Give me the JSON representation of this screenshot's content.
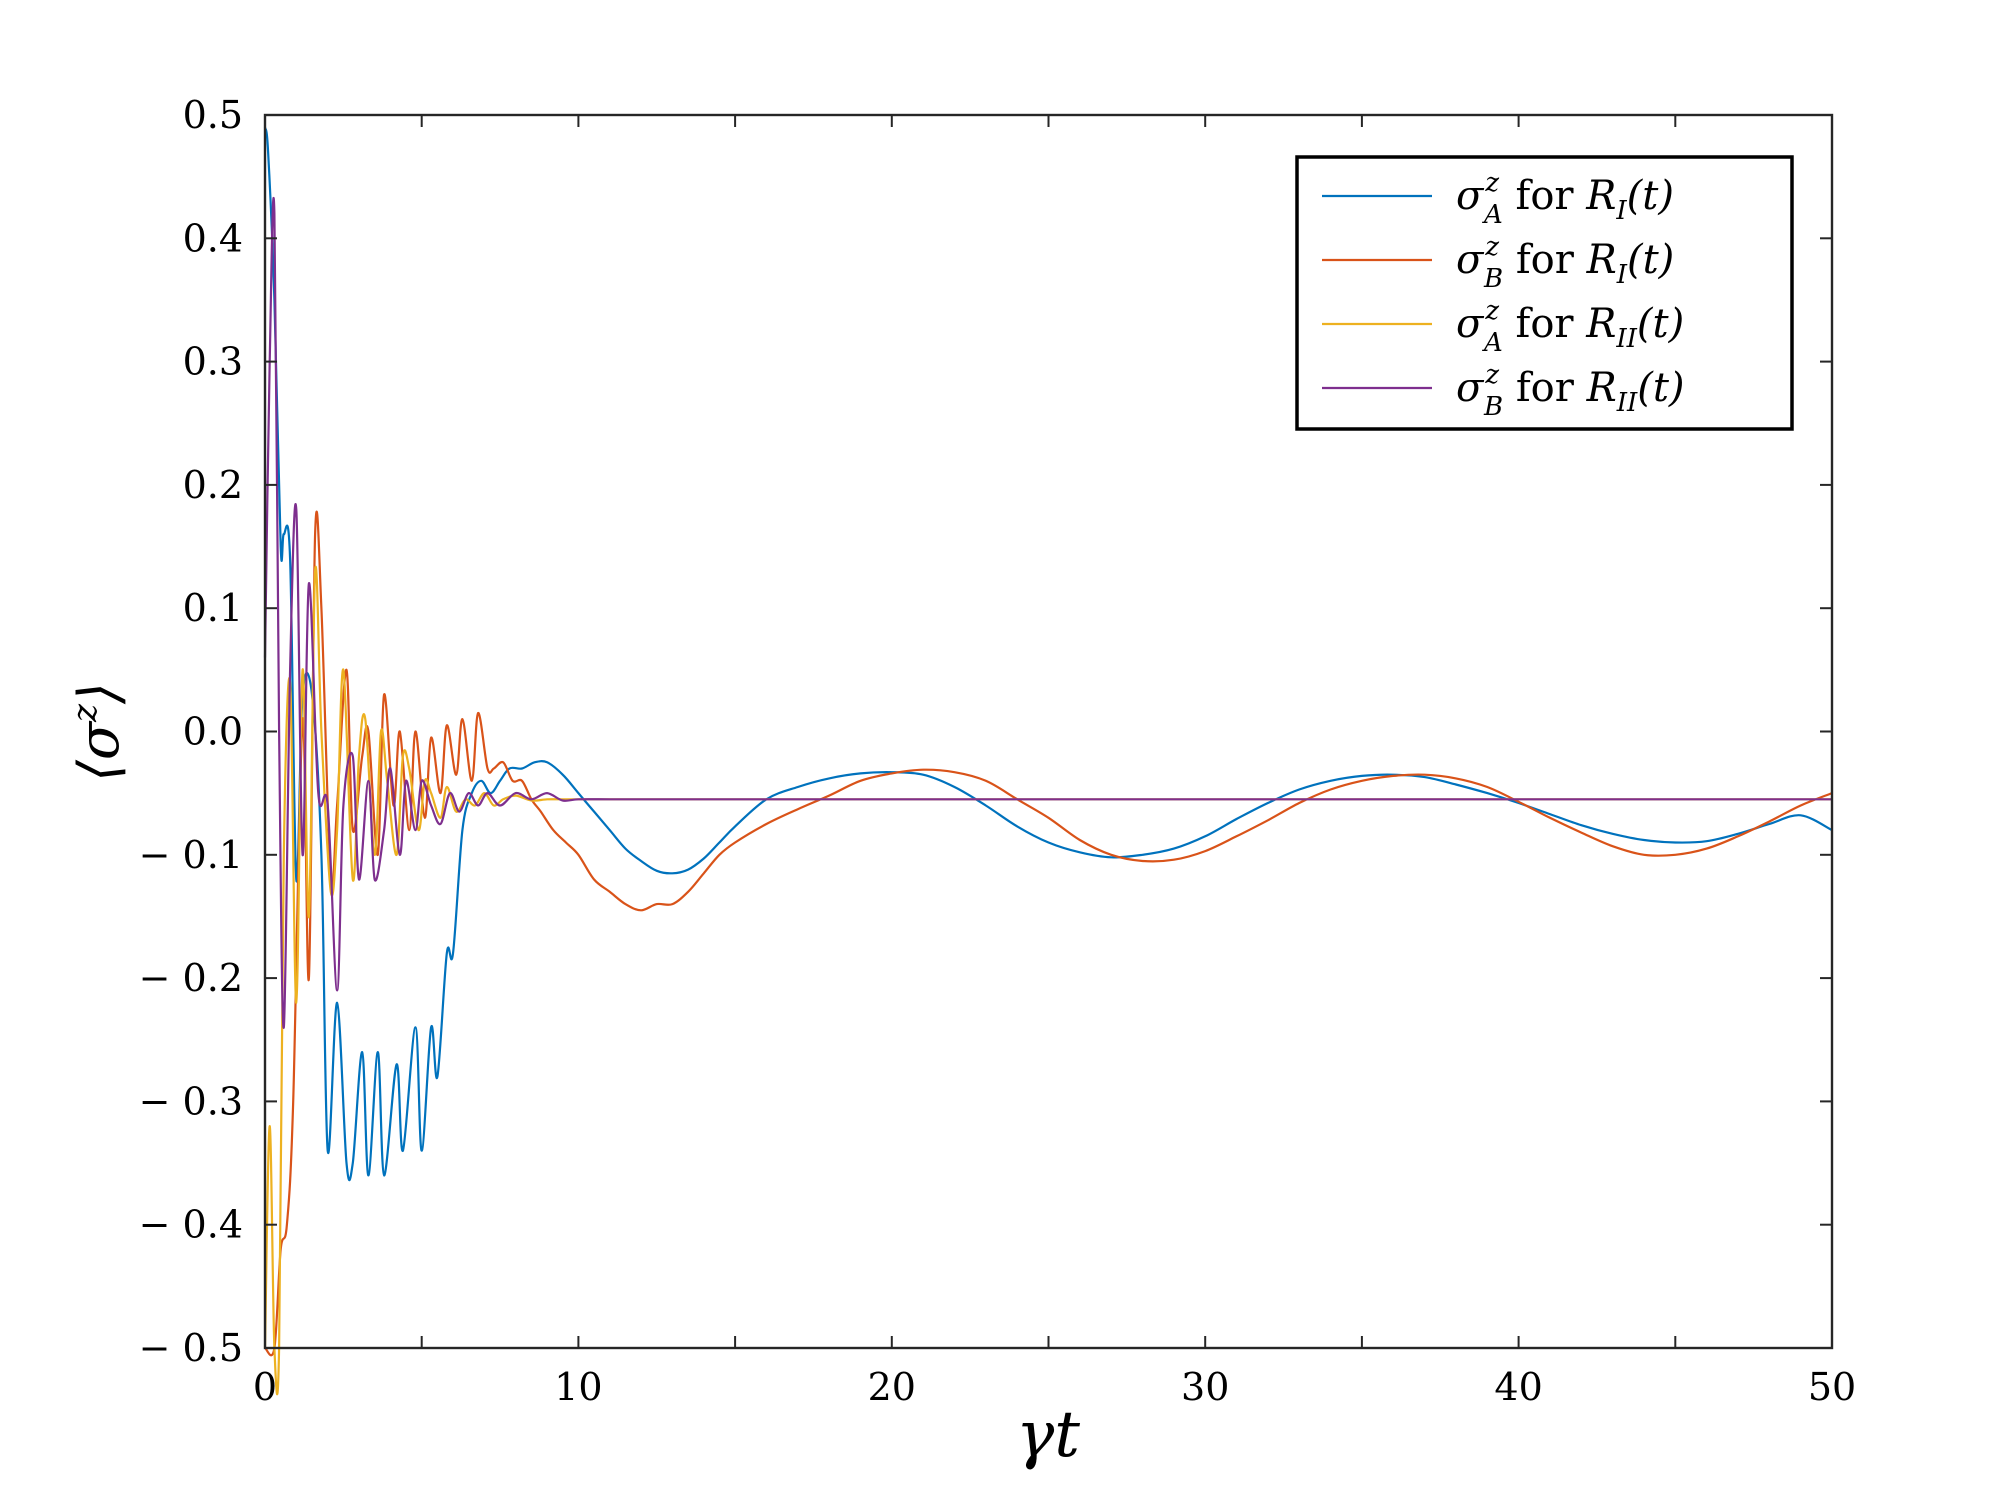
{
  "chart_data": {
    "type": "line",
    "xlabel": "γt",
    "ylabel": "⟨σ^z⟩",
    "xlim": [
      0,
      50
    ],
    "ylim": [
      -0.5,
      0.5
    ],
    "xticks": [
      "0",
      "10",
      "20",
      "30",
      "40",
      "50"
    ],
    "yticks": [
      "0.5",
      "0.4",
      "0.3",
      "0.2",
      "0.1",
      "0.0",
      "− 0.1",
      "− 0.2",
      "− 0.3",
      "− 0.4",
      "− 0.5"
    ],
    "grid": false,
    "legend_position": "top-right",
    "series": [
      {
        "name": "σ_A^z for R_I(t)",
        "legend": {
          "sym": "σ",
          "sup": "z",
          "sub": "A",
          "mid": " for ",
          "R": "R",
          "Rsub": "I",
          "tail": "(t)"
        },
        "color": "#0072BD",
        "x": [
          0,
          0.1,
          0.3,
          0.5,
          0.6,
          0.8,
          1.0,
          1.2,
          1.5,
          1.8,
          2.0,
          2.3,
          2.6,
          2.8,
          3.1,
          3.3,
          3.6,
          3.8,
          4.2,
          4.4,
          4.8,
          5.0,
          5.3,
          5.5,
          5.8,
          6.0,
          6.3,
          6.6,
          6.9,
          7.2,
          7.5,
          7.8,
          8.2,
          8.6,
          9.0,
          9.5,
          10.0,
          10.5,
          11.0,
          11.5,
          12.0,
          12.5,
          13.0,
          13.5,
          14.0,
          14.5,
          15.0,
          16.0,
          17.0,
          18.0,
          19.0,
          20.0,
          21.0,
          22.0,
          23.0,
          24.0,
          25.0,
          26.0,
          27.0,
          28.0,
          29.0,
          30.0,
          31.0,
          32.0,
          33.0,
          34.0,
          35.0,
          36.0,
          37.0,
          38.0,
          39.0,
          40.0,
          41.0,
          42.0,
          43.0,
          44.0,
          45.0,
          46.0,
          47.0,
          48.0,
          49.0,
          50.0
        ],
        "values": [
          0.49,
          0.47,
          0.35,
          0.15,
          0.16,
          0.14,
          -0.12,
          0.03,
          0.03,
          -0.1,
          -0.34,
          -0.22,
          -0.35,
          -0.35,
          -0.26,
          -0.36,
          -0.26,
          -0.36,
          -0.27,
          -0.34,
          -0.24,
          -0.34,
          -0.24,
          -0.28,
          -0.18,
          -0.18,
          -0.08,
          -0.05,
          -0.04,
          -0.05,
          -0.04,
          -0.03,
          -0.03,
          -0.025,
          -0.025,
          -0.035,
          -0.05,
          -0.065,
          -0.08,
          -0.095,
          -0.105,
          -0.113,
          -0.115,
          -0.112,
          -0.103,
          -0.09,
          -0.077,
          -0.055,
          -0.045,
          -0.038,
          -0.034,
          -0.033,
          -0.035,
          -0.045,
          -0.06,
          -0.077,
          -0.09,
          -0.098,
          -0.102,
          -0.1,
          -0.095,
          -0.085,
          -0.071,
          -0.058,
          -0.047,
          -0.04,
          -0.036,
          -0.035,
          -0.037,
          -0.043,
          -0.05,
          -0.058,
          -0.067,
          -0.076,
          -0.083,
          -0.088,
          -0.09,
          -0.089,
          -0.083,
          -0.075,
          -0.068,
          -0.08
        ]
      },
      {
        "name": "σ_B^z for R_I(t)",
        "legend": {
          "sym": "σ",
          "sup": "z",
          "sub": "B",
          "mid": " for ",
          "R": "R",
          "Rsub": "I",
          "tail": "(t)"
        },
        "color": "#D95319",
        "x": [
          0,
          0.3,
          0.5,
          0.7,
          0.9,
          1.2,
          1.4,
          1.6,
          1.8,
          2.1,
          2.3,
          2.6,
          2.8,
          3.1,
          3.3,
          3.6,
          3.8,
          4.1,
          4.3,
          4.6,
          4.8,
          5.1,
          5.3,
          5.6,
          5.8,
          6.1,
          6.3,
          6.6,
          6.8,
          7.1,
          7.3,
          7.6,
          7.9,
          8.2,
          8.5,
          8.8,
          9.2,
          9.6,
          10.0,
          10.5,
          11.0,
          11.5,
          12.0,
          12.5,
          13.0,
          13.5,
          14.0,
          14.5,
          15.0,
          16.0,
          17.0,
          18.0,
          19.0,
          20.0,
          21.0,
          22.0,
          23.0,
          24.0,
          25.0,
          26.0,
          27.0,
          28.0,
          29.0,
          30.0,
          31.0,
          32.0,
          33.0,
          34.0,
          35.0,
          36.0,
          37.0,
          38.0,
          39.0,
          40.0,
          41.0,
          42.0,
          43.0,
          44.0,
          45.0,
          46.0,
          47.0,
          48.0,
          49.0,
          50.0
        ],
        "values": [
          -0.5,
          -0.5,
          -0.42,
          -0.4,
          -0.3,
          0.01,
          -0.2,
          0.16,
          0.1,
          -0.12,
          -0.06,
          0.05,
          -0.08,
          -0.02,
          0.0,
          -0.1,
          0.03,
          -0.06,
          0.0,
          -0.08,
          0.0,
          -0.07,
          -0.005,
          -0.05,
          0.005,
          -0.035,
          0.01,
          -0.04,
          0.015,
          -0.03,
          -0.03,
          -0.025,
          -0.04,
          -0.04,
          -0.055,
          -0.065,
          -0.08,
          -0.09,
          -0.1,
          -0.12,
          -0.13,
          -0.14,
          -0.145,
          -0.14,
          -0.14,
          -0.13,
          -0.115,
          -0.1,
          -0.09,
          -0.075,
          -0.063,
          -0.052,
          -0.04,
          -0.034,
          -0.031,
          -0.033,
          -0.04,
          -0.055,
          -0.07,
          -0.088,
          -0.1,
          -0.105,
          -0.104,
          -0.097,
          -0.085,
          -0.072,
          -0.058,
          -0.047,
          -0.04,
          -0.036,
          -0.035,
          -0.038,
          -0.045,
          -0.057,
          -0.07,
          -0.082,
          -0.093,
          -0.1,
          -0.1,
          -0.095,
          -0.085,
          -0.073,
          -0.06,
          -0.05
        ]
      },
      {
        "name": "σ_A^z for R_II(t)",
        "legend": {
          "sym": "σ",
          "sup": "z",
          "sub": "A",
          "mid": " for ",
          "R": "R",
          "Rsub": "II",
          "tail": "(t)"
        },
        "color": "#EDB120",
        "x": [
          0,
          0.15,
          0.3,
          0.45,
          0.6,
          0.8,
          1.0,
          1.2,
          1.4,
          1.6,
          1.8,
          2.1,
          2.3,
          2.5,
          2.8,
          3.0,
          3.2,
          3.5,
          3.7,
          3.9,
          4.2,
          4.4,
          4.6,
          4.9,
          5.1,
          5.3,
          5.6,
          5.8,
          6.1,
          6.4,
          6.7,
          7.0,
          7.3,
          7.6,
          8.0,
          8.5,
          9.0,
          9.5,
          10.0,
          11.0,
          12.0,
          15.0,
          20.0,
          30.0,
          40.0,
          50.0
        ],
        "values": [
          -0.5,
          -0.32,
          -0.5,
          -0.5,
          -0.1,
          0.04,
          -0.22,
          0.05,
          -0.15,
          0.13,
          0.0,
          -0.13,
          -0.08,
          0.05,
          -0.12,
          -0.02,
          0.01,
          -0.1,
          0.0,
          -0.04,
          -0.1,
          -0.02,
          -0.03,
          -0.08,
          -0.04,
          -0.05,
          -0.07,
          -0.045,
          -0.065,
          -0.055,
          -0.06,
          -0.05,
          -0.06,
          -0.055,
          -0.052,
          -0.056,
          -0.055,
          -0.055,
          -0.055,
          -0.055,
          -0.055,
          -0.055,
          -0.055,
          -0.055,
          -0.055,
          -0.055
        ]
      },
      {
        "name": "σ_B^z for R_II(t)",
        "legend": {
          "sym": "σ",
          "sup": "z",
          "sub": "B",
          "mid": " for ",
          "R": "R",
          "Rsub": "II",
          "tail": "(t)"
        },
        "color": "#7E2F8E",
        "x": [
          0,
          0.15,
          0.3,
          0.45,
          0.6,
          0.8,
          1.0,
          1.2,
          1.4,
          1.7,
          2.0,
          2.3,
          2.5,
          2.8,
          3.0,
          3.3,
          3.5,
          3.8,
          4.0,
          4.3,
          4.5,
          4.8,
          5.0,
          5.3,
          5.6,
          5.9,
          6.2,
          6.5,
          6.8,
          7.1,
          7.5,
          8.0,
          8.5,
          9.0,
          9.5,
          10.0,
          11.0,
          12.0,
          15.0,
          20.0,
          30.0,
          40.0,
          50.0
        ],
        "values": [
          0.06,
          0.3,
          0.42,
          0.0,
          -0.24,
          0.05,
          0.18,
          -0.1,
          0.12,
          -0.05,
          -0.06,
          -0.21,
          -0.06,
          -0.02,
          -0.12,
          -0.04,
          -0.12,
          -0.08,
          -0.03,
          -0.1,
          -0.04,
          -0.08,
          -0.04,
          -0.06,
          -0.075,
          -0.05,
          -0.065,
          -0.05,
          -0.06,
          -0.05,
          -0.06,
          -0.05,
          -0.055,
          -0.05,
          -0.056,
          -0.055,
          -0.055,
          -0.055,
          -0.055,
          -0.055,
          -0.055,
          -0.055,
          -0.055
        ]
      }
    ]
  }
}
